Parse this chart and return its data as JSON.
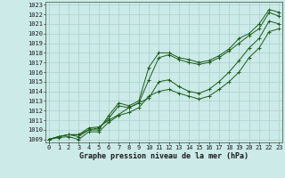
{
  "title": "Graphe pression niveau de la mer (hPa)",
  "hours": [
    0,
    1,
    2,
    3,
    4,
    5,
    6,
    7,
    8,
    9,
    10,
    11,
    12,
    13,
    14,
    15,
    16,
    17,
    18,
    19,
    20,
    21,
    22,
    23
  ],
  "yticks": [
    1009,
    1010,
    1011,
    1012,
    1013,
    1014,
    1015,
    1016,
    1017,
    1018,
    1019,
    1020,
    1021,
    1022,
    1023
  ],
  "ylim": [
    1008.7,
    1023.3
  ],
  "xlim": [
    -0.3,
    23.3
  ],
  "bg_color": "#cceae8",
  "grid_color": "#aacfcc",
  "line_color": "#1a5c1a",
  "series1": [
    1009.0,
    1009.3,
    1009.5,
    1009.5,
    1010.2,
    1010.3,
    1011.0,
    1011.6,
    1012.3,
    1012.8,
    1013.3,
    1015.0,
    1015.2,
    1014.5,
    1014.0,
    1013.8,
    1014.2,
    1015.0,
    1016.0,
    1017.2,
    1018.5,
    1019.5,
    1021.3,
    1021.0
  ],
  "series2": [
    1009.0,
    1009.3,
    1009.5,
    1009.5,
    1010.0,
    1010.2,
    1011.2,
    1012.5,
    1012.3,
    1012.8,
    1015.2,
    1017.5,
    1017.8,
    1017.3,
    1017.0,
    1016.8,
    1017.0,
    1017.5,
    1018.2,
    1019.0,
    1019.8,
    1020.5,
    1022.2,
    1021.8
  ],
  "series3": [
    1009.0,
    1009.3,
    1009.5,
    1009.3,
    1010.0,
    1010.0,
    1011.5,
    1012.8,
    1012.5,
    1013.0,
    1016.5,
    1018.0,
    1018.0,
    1017.5,
    1017.3,
    1017.0,
    1017.2,
    1017.7,
    1018.4,
    1019.5,
    1020.0,
    1021.0,
    1022.5,
    1022.2
  ],
  "series4": [
    1009.0,
    1009.2,
    1009.3,
    1009.0,
    1009.8,
    1009.8,
    1010.8,
    1011.5,
    1011.8,
    1012.3,
    1013.5,
    1014.0,
    1014.2,
    1013.8,
    1013.5,
    1013.2,
    1013.5,
    1014.2,
    1015.0,
    1016.0,
    1017.5,
    1018.5,
    1020.2,
    1020.5
  ],
  "font_color": "#1a1a1a",
  "font_size_ticks": 5,
  "font_size_label": 6
}
